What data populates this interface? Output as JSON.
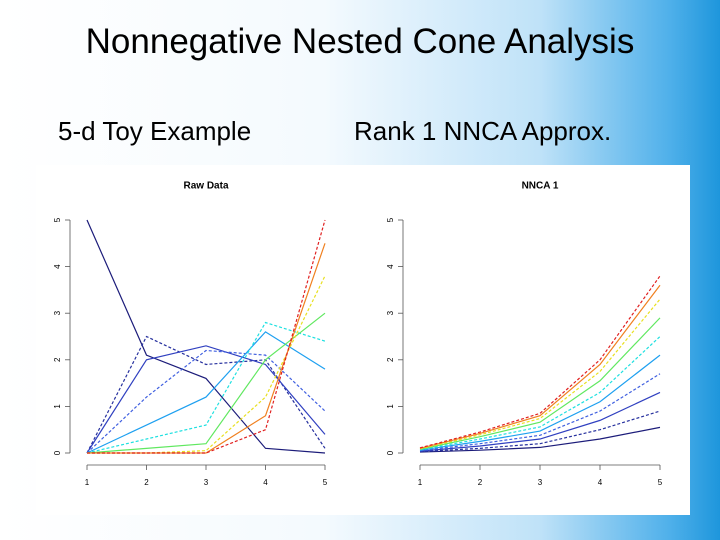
{
  "header": {
    "title": "Nonnegative Nested Cone Analysis"
  },
  "subtitles": [
    "5-d Toy Example",
    "Rank 1 NNCA Approx."
  ],
  "chart_data": [
    {
      "type": "line",
      "title": "Raw Data",
      "x": [
        1,
        2,
        3,
        4,
        5
      ],
      "xlim": [
        1,
        5
      ],
      "xticks": [
        1,
        2,
        3,
        4,
        5
      ],
      "ylim": [
        0,
        5
      ],
      "yticks": [
        0,
        1,
        2,
        3,
        4,
        5
      ],
      "series": [
        {
          "color": "#1c1c7a",
          "values": [
            5,
            2.1,
            1.6,
            0.1,
            0
          ]
        },
        {
          "color": "#26309e",
          "values": [
            0,
            2.5,
            1.9,
            2.0,
            0.1
          ]
        },
        {
          "color": "#3040c0",
          "values": [
            0,
            2.0,
            2.3,
            1.9,
            0.4
          ]
        },
        {
          "color": "#4060e0",
          "values": [
            0,
            1.2,
            2.2,
            2.1,
            0.9
          ]
        },
        {
          "color": "#1ea0f0",
          "values": [
            0,
            0.6,
            1.2,
            2.6,
            1.8
          ]
        },
        {
          "color": "#1ee0e0",
          "values": [
            0,
            0.3,
            0.6,
            2.8,
            2.4
          ]
        },
        {
          "color": "#60e860",
          "values": [
            0,
            0.1,
            0.2,
            2.0,
            3.0
          ]
        },
        {
          "color": "#e8e020",
          "values": [
            0,
            0,
            0.05,
            1.2,
            3.8
          ]
        },
        {
          "color": "#f08020",
          "values": [
            0,
            0,
            0,
            0.8,
            4.5
          ]
        },
        {
          "color": "#e02020",
          "values": [
            0,
            0,
            0,
            0.5,
            5
          ]
        }
      ]
    },
    {
      "type": "line",
      "title": "NNCA 1",
      "x": [
        1,
        2,
        3,
        4,
        5
      ],
      "xlim": [
        1,
        5
      ],
      "xticks": [
        1,
        2,
        3,
        4,
        5
      ],
      "ylim": [
        0,
        5
      ],
      "yticks": [
        0,
        1,
        2,
        3,
        4,
        5
      ],
      "series": [
        {
          "color": "#1c1c7a",
          "values": [
            0.02,
            0.06,
            0.12,
            0.3,
            0.55
          ]
        },
        {
          "color": "#26309e",
          "values": [
            0.03,
            0.1,
            0.2,
            0.5,
            0.9
          ]
        },
        {
          "color": "#3040c0",
          "values": [
            0.04,
            0.15,
            0.3,
            0.7,
            1.3
          ]
        },
        {
          "color": "#4060e0",
          "values": [
            0.05,
            0.2,
            0.38,
            0.9,
            1.7
          ]
        },
        {
          "color": "#1ea0f0",
          "values": [
            0.06,
            0.25,
            0.47,
            1.1,
            2.1
          ]
        },
        {
          "color": "#1ee0e0",
          "values": [
            0.07,
            0.3,
            0.56,
            1.3,
            2.5
          ]
        },
        {
          "color": "#60e860",
          "values": [
            0.08,
            0.35,
            0.66,
            1.55,
            2.9
          ]
        },
        {
          "color": "#e8e020",
          "values": [
            0.09,
            0.39,
            0.74,
            1.75,
            3.3
          ]
        },
        {
          "color": "#f08020",
          "values": [
            0.1,
            0.42,
            0.8,
            1.9,
            3.6
          ]
        },
        {
          "color": "#e02020",
          "values": [
            0.11,
            0.45,
            0.85,
            2.0,
            3.8
          ]
        }
      ]
    }
  ]
}
